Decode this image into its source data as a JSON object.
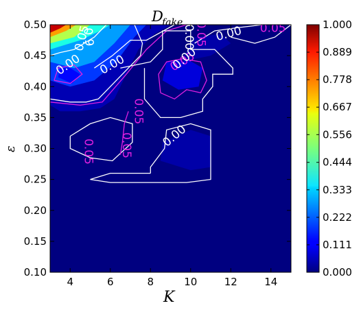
{
  "chart_data": {
    "type": "heatmap",
    "title_main": "D",
    "title_sub": "fake",
    "xlabel": "K",
    "ylabel": "ε",
    "xlim": [
      3,
      15
    ],
    "ylim": [
      0.1,
      0.5
    ],
    "x_ticks": [
      "4",
      "6",
      "8",
      "10",
      "12",
      "14"
    ],
    "y_ticks": [
      "0.10",
      "0.15",
      "0.20",
      "0.25",
      "0.30",
      "0.35",
      "0.40",
      "0.45",
      "0.50"
    ],
    "colorbar": {
      "range": [
        0,
        1
      ],
      "ticks": [
        "0.000",
        "0.111",
        "0.222",
        "0.333",
        "0.444",
        "0.556",
        "0.667",
        "0.778",
        "0.889",
        "1.000"
      ]
    },
    "colormap": "jet",
    "background_value": 0.0,
    "regions": [
      {
        "level": 0.05,
        "points": [
          [
            3,
            0.37
          ],
          [
            3.5,
            0.36
          ],
          [
            4.5,
            0.36
          ],
          [
            5.5,
            0.365
          ],
          [
            6.2,
            0.38
          ],
          [
            6.8,
            0.42
          ],
          [
            7.4,
            0.46
          ],
          [
            8.2,
            0.485
          ],
          [
            9,
            0.5
          ],
          [
            3,
            0.5
          ]
        ]
      },
      {
        "level": 0.18,
        "points": [
          [
            3,
            0.41
          ],
          [
            4,
            0.4
          ],
          [
            5.2,
            0.41
          ],
          [
            6.3,
            0.44
          ],
          [
            7.2,
            0.48
          ],
          [
            7.8,
            0.5
          ],
          [
            3,
            0.5
          ]
        ]
      },
      {
        "level": 0.28,
        "points": [
          [
            3,
            0.44
          ],
          [
            4.2,
            0.43
          ],
          [
            5.2,
            0.44
          ],
          [
            6.2,
            0.47
          ],
          [
            7,
            0.5
          ],
          [
            3,
            0.5
          ]
        ]
      },
      {
        "level": 0.4,
        "points": [
          [
            3,
            0.46
          ],
          [
            4.5,
            0.475
          ],
          [
            5.5,
            0.49
          ],
          [
            6,
            0.5
          ],
          [
            3,
            0.5
          ]
        ]
      },
      {
        "level": 0.55,
        "points": [
          [
            3,
            0.47
          ],
          [
            4.2,
            0.48
          ],
          [
            5,
            0.5
          ],
          [
            3,
            0.5
          ]
        ]
      },
      {
        "level": 0.72,
        "points": [
          [
            3,
            0.48
          ],
          [
            3.8,
            0.49
          ],
          [
            4.3,
            0.5
          ],
          [
            3,
            0.5
          ]
        ]
      },
      {
        "level": 0.93,
        "points": [
          [
            3,
            0.487
          ],
          [
            3.5,
            0.494
          ],
          [
            3.8,
            0.5
          ],
          [
            3,
            0.5
          ]
        ]
      },
      {
        "level": 0.13,
        "points": [
          [
            3.4,
            0.415
          ],
          [
            4.1,
            0.405
          ],
          [
            4.5,
            0.42
          ],
          [
            4.0,
            0.43
          ],
          [
            3.5,
            0.43
          ]
        ]
      },
      {
        "level": 0.09,
        "points": [
          [
            8.6,
            0.41
          ],
          [
            9.4,
            0.395
          ],
          [
            10.4,
            0.4
          ],
          [
            10.6,
            0.43
          ],
          [
            9.8,
            0.445
          ],
          [
            8.8,
            0.44
          ]
        ]
      },
      {
        "level": 0.04,
        "points": [
          [
            8.5,
            0.28
          ],
          [
            10,
            0.265
          ],
          [
            11,
            0.27
          ],
          [
            11,
            0.32
          ],
          [
            10,
            0.33
          ],
          [
            8.6,
            0.31
          ]
        ]
      },
      {
        "level": 0.04,
        "points": [
          [
            9.5,
            0.44
          ],
          [
            11,
            0.45
          ],
          [
            12,
            0.47
          ],
          [
            11.5,
            0.485
          ],
          [
            10.2,
            0.48
          ]
        ]
      }
    ],
    "contours": [
      {
        "color": "#ffffff",
        "points": [
          [
            3,
            0.38
          ],
          [
            4,
            0.375
          ],
          [
            4.8,
            0.375
          ],
          [
            5.4,
            0.38
          ],
          [
            6.6,
            0.42
          ],
          [
            7.5,
            0.45
          ],
          [
            7.6,
            0.47
          ],
          [
            7.2,
            0.5
          ]
        ]
      },
      {
        "color": "#ffffff",
        "points": [
          [
            5.2,
            0.43
          ],
          [
            6.1,
            0.45
          ],
          [
            7,
            0.475
          ],
          [
            7.8,
            0.475
          ],
          [
            9.2,
            0.5
          ]
        ]
      },
      {
        "color": "#ffffff",
        "points": [
          [
            3,
            0.45
          ],
          [
            3.5,
            0.455
          ],
          [
            4.2,
            0.46
          ],
          [
            5.2,
            0.48
          ],
          [
            5.8,
            0.5
          ]
        ]
      },
      {
        "color": "#e020e0",
        "points": [
          [
            3,
            0.375
          ],
          [
            4.5,
            0.37
          ],
          [
            5.6,
            0.375
          ],
          [
            6.8,
            0.42
          ],
          [
            7.8,
            0.46
          ],
          [
            8.8,
            0.49
          ],
          [
            9.8,
            0.5
          ]
        ]
      },
      {
        "color": "#e020e0",
        "points": [
          [
            3.2,
            0.41
          ],
          [
            4,
            0.405
          ],
          [
            4.6,
            0.42
          ],
          [
            4.2,
            0.435
          ],
          [
            3.4,
            0.43
          ],
          [
            3.2,
            0.41
          ]
        ]
      },
      {
        "color": "#ffffff",
        "points": [
          [
            6.5,
            0.43
          ],
          [
            8,
            0.44
          ],
          [
            8.6,
            0.46
          ],
          [
            8.6,
            0.49
          ],
          [
            10,
            0.49
          ],
          [
            10,
            0.46
          ],
          [
            11.2,
            0.46
          ],
          [
            12.1,
            0.43
          ],
          [
            12.1,
            0.42
          ],
          [
            11.1,
            0.42
          ],
          [
            11.1,
            0.4
          ],
          [
            10.6,
            0.38
          ],
          [
            10.6,
            0.36
          ],
          [
            9.5,
            0.35
          ],
          [
            8.5,
            0.35
          ],
          [
            7.7,
            0.38
          ],
          [
            7.7,
            0.43
          ]
        ]
      },
      {
        "color": "#e020e0",
        "points": [
          [
            8.5,
            0.39
          ],
          [
            9.2,
            0.38
          ],
          [
            9.8,
            0.395
          ],
          [
            10.5,
            0.39
          ],
          [
            10.8,
            0.41
          ],
          [
            10.5,
            0.44
          ],
          [
            9.6,
            0.445
          ],
          [
            8.8,
            0.44
          ],
          [
            8.4,
            0.42
          ],
          [
            8.5,
            0.39
          ]
        ]
      },
      {
        "color": "#ffffff",
        "points": [
          [
            4,
            0.32
          ],
          [
            4,
            0.3
          ],
          [
            5,
            0.285
          ],
          [
            6.1,
            0.28
          ],
          [
            7.1,
            0.31
          ],
          [
            7.1,
            0.34
          ],
          [
            6,
            0.35
          ],
          [
            5,
            0.34
          ],
          [
            4,
            0.32
          ]
        ]
      },
      {
        "color": "#e020e0",
        "points": [
          [
            6.5,
            0.29
          ],
          [
            6.6,
            0.31
          ],
          [
            6.7,
            0.34
          ],
          [
            6.9,
            0.36
          ]
        ]
      },
      {
        "color": "#ffffff",
        "points": [
          [
            8,
            0.26
          ],
          [
            8,
            0.27
          ],
          [
            8.7,
            0.3
          ],
          [
            8.8,
            0.33
          ],
          [
            10,
            0.34
          ],
          [
            11,
            0.33
          ],
          [
            11,
            0.25
          ],
          [
            9.8,
            0.245
          ],
          [
            6,
            0.245
          ],
          [
            5,
            0.25
          ],
          [
            6,
            0.26
          ],
          [
            8,
            0.26
          ]
        ]
      },
      {
        "color": "#ffffff",
        "points": [
          [
            10.2,
            0.47
          ],
          [
            11.2,
            0.49
          ],
          [
            12.3,
            0.495
          ],
          [
            13.6,
            0.5
          ]
        ]
      },
      {
        "color": "#ffffff",
        "points": [
          [
            12,
            0.48
          ],
          [
            13.2,
            0.47
          ],
          [
            14.2,
            0.48
          ],
          [
            15,
            0.5
          ]
        ]
      }
    ],
    "contour_labels": [
      {
        "text": "0.00",
        "x": 3.9,
        "y": 0.435,
        "rot": -35,
        "color": "white"
      },
      {
        "text": "0.00",
        "x": 6.1,
        "y": 0.435,
        "rot": -30,
        "color": "white"
      },
      {
        "text": "0.05",
        "x": 4.6,
        "y": 0.478,
        "rot": -75,
        "color": "white"
      },
      {
        "text": "0.9",
        "x": 4.9,
        "y": 0.48,
        "rot": 85,
        "color": "white"
      },
      {
        "text": "0.05",
        "x": 9.6,
        "y": 0.44,
        "rot": -30,
        "color": "magenta"
      },
      {
        "text": "0.00",
        "x": 9.7,
        "y": 0.445,
        "rot": -40,
        "color": "white"
      },
      {
        "text": "0.00",
        "x": 9.9,
        "y": 0.48,
        "rot": 90,
        "color": "white"
      },
      {
        "text": "0.05",
        "x": 10.5,
        "y": 0.485,
        "rot": 90,
        "color": "magenta"
      },
      {
        "text": "0.00",
        "x": 11.9,
        "y": 0.485,
        "rot": -15,
        "color": "white"
      },
      {
        "text": "0.05",
        "x": 14.1,
        "y": 0.494,
        "rot": 0,
        "color": "magenta"
      },
      {
        "text": "0.05",
        "x": 6.8,
        "y": 0.305,
        "rot": 90,
        "color": "magenta"
      },
      {
        "text": "0.05",
        "x": 7.4,
        "y": 0.36,
        "rot": 90,
        "color": "magenta"
      },
      {
        "text": "0.05",
        "x": 4.9,
        "y": 0.295,
        "rot": 90,
        "color": "magenta"
      },
      {
        "text": "0.00",
        "x": 9.2,
        "y": 0.32,
        "rot": -40,
        "color": "white"
      }
    ]
  }
}
